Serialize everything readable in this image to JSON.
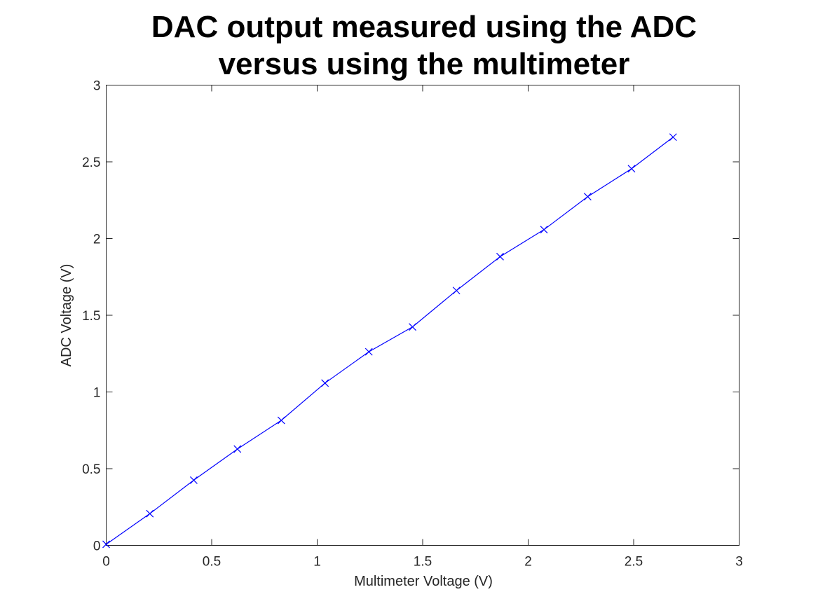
{
  "chart_data": {
    "type": "line",
    "title": [
      "DAC output measured using the ADC",
      "versus using the multimeter"
    ],
    "xlabel": "Multimeter Voltage (V)",
    "ylabel": "ADC Voltage (V)",
    "xlim": [
      0,
      3
    ],
    "ylim": [
      0,
      3
    ],
    "xticks": [
      0,
      0.5,
      1,
      1.5,
      2,
      2.5,
      3
    ],
    "yticks": [
      0,
      0.5,
      1,
      1.5,
      2,
      2.5,
      3
    ],
    "xtick_labels": [
      "0",
      "0.5",
      "1",
      "1.5",
      "2",
      "2.5",
      "3"
    ],
    "ytick_labels": [
      "0",
      "0.5",
      "1",
      "1.5",
      "2",
      "2.5",
      "3"
    ],
    "grid": false,
    "legend": "none",
    "series": [
      {
        "color": "#0000ff",
        "marker": "x",
        "x": [
          0.0,
          0.207,
          0.415,
          0.622,
          0.83,
          1.037,
          1.245,
          1.452,
          1.66,
          1.867,
          2.075,
          2.282,
          2.49,
          2.687
        ],
        "y": [
          0.007,
          0.207,
          0.425,
          0.628,
          0.815,
          1.058,
          1.262,
          1.424,
          1.661,
          1.882,
          2.058,
          2.273,
          2.455,
          2.661
        ]
      }
    ]
  }
}
